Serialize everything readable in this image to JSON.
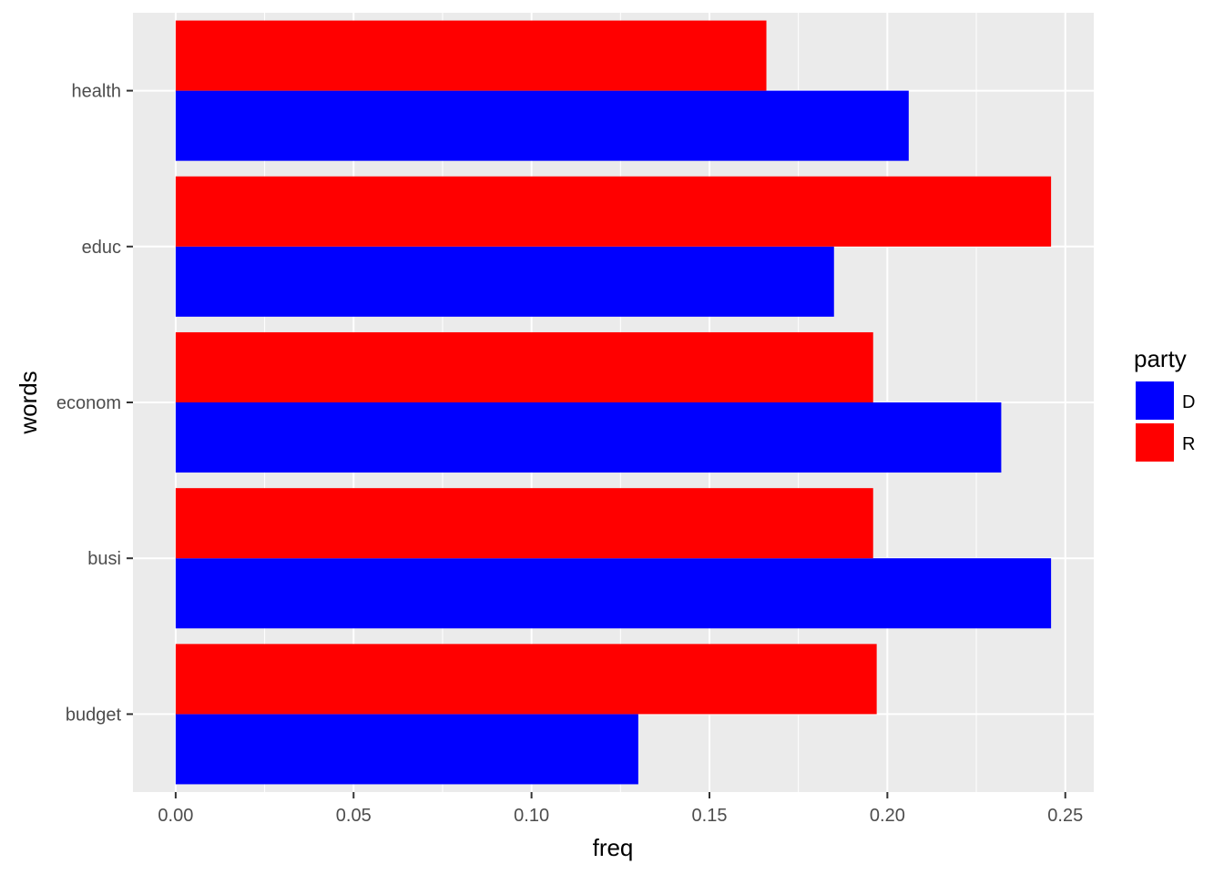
{
  "chart_data": {
    "type": "bar",
    "orientation": "horizontal",
    "categories": [
      "budget",
      "busi",
      "econom",
      "educ",
      "health"
    ],
    "series": [
      {
        "name": "D",
        "color": "#0000FF",
        "values": [
          0.13,
          0.246,
          0.232,
          0.185,
          0.206
        ]
      },
      {
        "name": "R",
        "color": "#FF0000",
        "values": [
          0.197,
          0.196,
          0.196,
          0.246,
          0.166
        ]
      }
    ],
    "xlabel": "freq",
    "ylabel": "words",
    "xlim": [
      -0.012,
      0.258
    ],
    "xticks": [
      0.0,
      0.05,
      0.1,
      0.15,
      0.2,
      0.25
    ],
    "xtick_labels": [
      "0.00",
      "0.05",
      "0.10",
      "0.15",
      "0.20",
      "0.25"
    ],
    "grid": true,
    "panel_background": "#EBEBEB",
    "legend": {
      "title": "party",
      "placement": "right",
      "entries": [
        {
          "label": "D",
          "color": "#0000FF"
        },
        {
          "label": "R",
          "color": "#FF0000"
        }
      ]
    }
  }
}
